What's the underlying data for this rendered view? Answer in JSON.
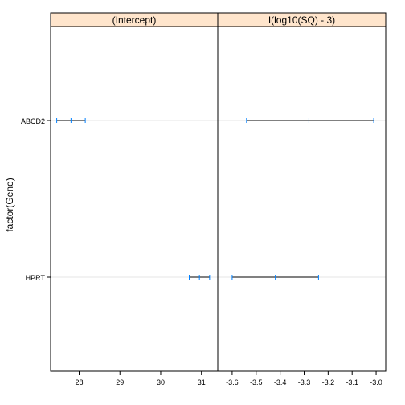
{
  "chart_data": {
    "type": "interval",
    "ylabel": "factor(Gene)",
    "categories": [
      "ABCD2",
      "HPRT"
    ],
    "panels": [
      {
        "title": "(Intercept)",
        "xlim": [
          27.3,
          31.4
        ],
        "xticks": [
          28,
          29,
          30,
          31
        ],
        "tick_labels": [
          "28",
          "29",
          "30",
          "31"
        ],
        "intervals": [
          {
            "category": "ABCD2",
            "lower": 27.45,
            "estimate": 27.8,
            "upper": 28.15
          },
          {
            "category": "HPRT",
            "lower": 30.7,
            "estimate": 30.95,
            "upper": 31.2
          }
        ]
      },
      {
        "title": "I(log10(SQ) - 3)",
        "xlim": [
          -3.66,
          -2.96
        ],
        "xticks": [
          -3.6,
          -3.5,
          -3.4,
          -3.3,
          -3.2,
          -3.1,
          -3.0
        ],
        "tick_labels": [
          "-3.6",
          "-3.5",
          "-3.4",
          "-3.3",
          "-3.2",
          "-3.1",
          "-3.0"
        ],
        "intervals": [
          {
            "category": "ABCD2",
            "lower": -3.54,
            "estimate": -3.28,
            "upper": -3.01
          },
          {
            "category": "HPRT",
            "lower": -3.6,
            "estimate": -3.42,
            "upper": -3.24
          }
        ]
      }
    ],
    "colors": {
      "strip": "#FFE5CC",
      "interval": "#000000",
      "marker": "#0080FF",
      "guide": "#E6E6E6"
    }
  }
}
